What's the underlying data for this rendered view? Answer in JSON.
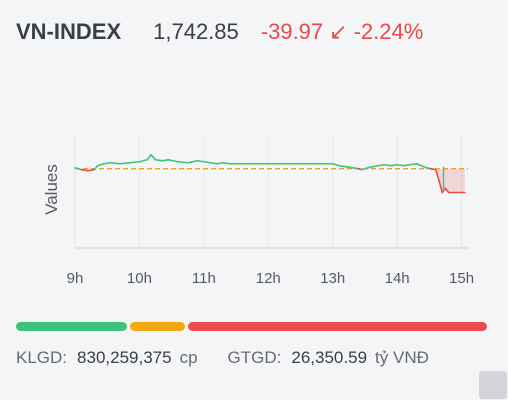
{
  "header": {
    "index_name": "VN-INDEX",
    "index_value": "1,742.85",
    "change": "-39.97",
    "change_arrow": "↙",
    "change_pct": "-2.24%"
  },
  "chart_data": {
    "type": "line",
    "ylabel": "Values",
    "x_tick_labels": [
      "9h",
      "10h",
      "11h",
      "12h",
      "13h",
      "14h",
      "15h"
    ],
    "x_ticks": [
      9,
      10,
      11,
      12,
      13,
      14,
      15
    ],
    "xlim": [
      9,
      15.1
    ],
    "ylim": [
      -4,
      1.7
    ],
    "reference": 0,
    "reference_color": "#f2a20c",
    "up_color": "#3cc47d",
    "down_color": "#e94a4a",
    "series": [
      {
        "values": [
          [
            9.0,
            0.05
          ],
          [
            9.1,
            -0.05
          ],
          [
            9.2,
            -0.1
          ],
          [
            9.3,
            -0.05
          ],
          [
            9.35,
            0.15
          ],
          [
            9.45,
            0.25
          ],
          [
            9.55,
            0.3
          ],
          [
            9.7,
            0.25
          ],
          [
            9.85,
            0.3
          ],
          [
            10.0,
            0.35
          ],
          [
            10.12,
            0.45
          ],
          [
            10.18,
            0.7
          ],
          [
            10.25,
            0.45
          ],
          [
            10.35,
            0.4
          ],
          [
            10.45,
            0.45
          ],
          [
            10.6,
            0.35
          ],
          [
            10.75,
            0.3
          ],
          [
            10.9,
            0.4
          ],
          [
            11.0,
            0.35
          ],
          [
            11.1,
            0.3
          ],
          [
            11.2,
            0.25
          ],
          [
            11.3,
            0.3
          ],
          [
            11.4,
            0.25
          ],
          [
            11.5,
            0.25
          ],
          [
            12.0,
            0.25
          ],
          [
            12.5,
            0.25
          ],
          [
            13.0,
            0.25
          ],
          [
            13.1,
            0.15
          ],
          [
            13.2,
            0.1
          ],
          [
            13.3,
            0.05
          ],
          [
            13.4,
            0.0
          ],
          [
            13.45,
            -0.05
          ],
          [
            13.55,
            0.05
          ],
          [
            13.7,
            0.15
          ],
          [
            13.8,
            0.2
          ],
          [
            13.9,
            0.15
          ],
          [
            14.0,
            0.2
          ],
          [
            14.1,
            0.15
          ],
          [
            14.2,
            0.2
          ],
          [
            14.3,
            0.25
          ],
          [
            14.38,
            0.15
          ],
          [
            14.45,
            0.05
          ],
          [
            14.52,
            0.0
          ],
          [
            14.6,
            -0.05
          ],
          [
            14.65,
            -0.6
          ],
          [
            14.7,
            -1.2
          ],
          [
            14.75,
            -1.0
          ],
          [
            14.8,
            -1.2
          ],
          [
            15.05,
            -1.2
          ]
        ]
      }
    ]
  },
  "breadth": {
    "advancing_fraction": 0.238,
    "unchanged_fraction": 0.12,
    "declining_fraction": 0.642,
    "advancing_color": "#3cc47d",
    "unchanged_color": "#f5a70f",
    "declining_color": "#ef4b4e"
  },
  "stats": {
    "volume_label": "KLGD:",
    "volume_value": "830,259,375",
    "volume_unit": "cp",
    "turnover_label": "GTGD:",
    "turnover_value": "26,350.59",
    "turnover_unit": "tỷ VNĐ"
  }
}
